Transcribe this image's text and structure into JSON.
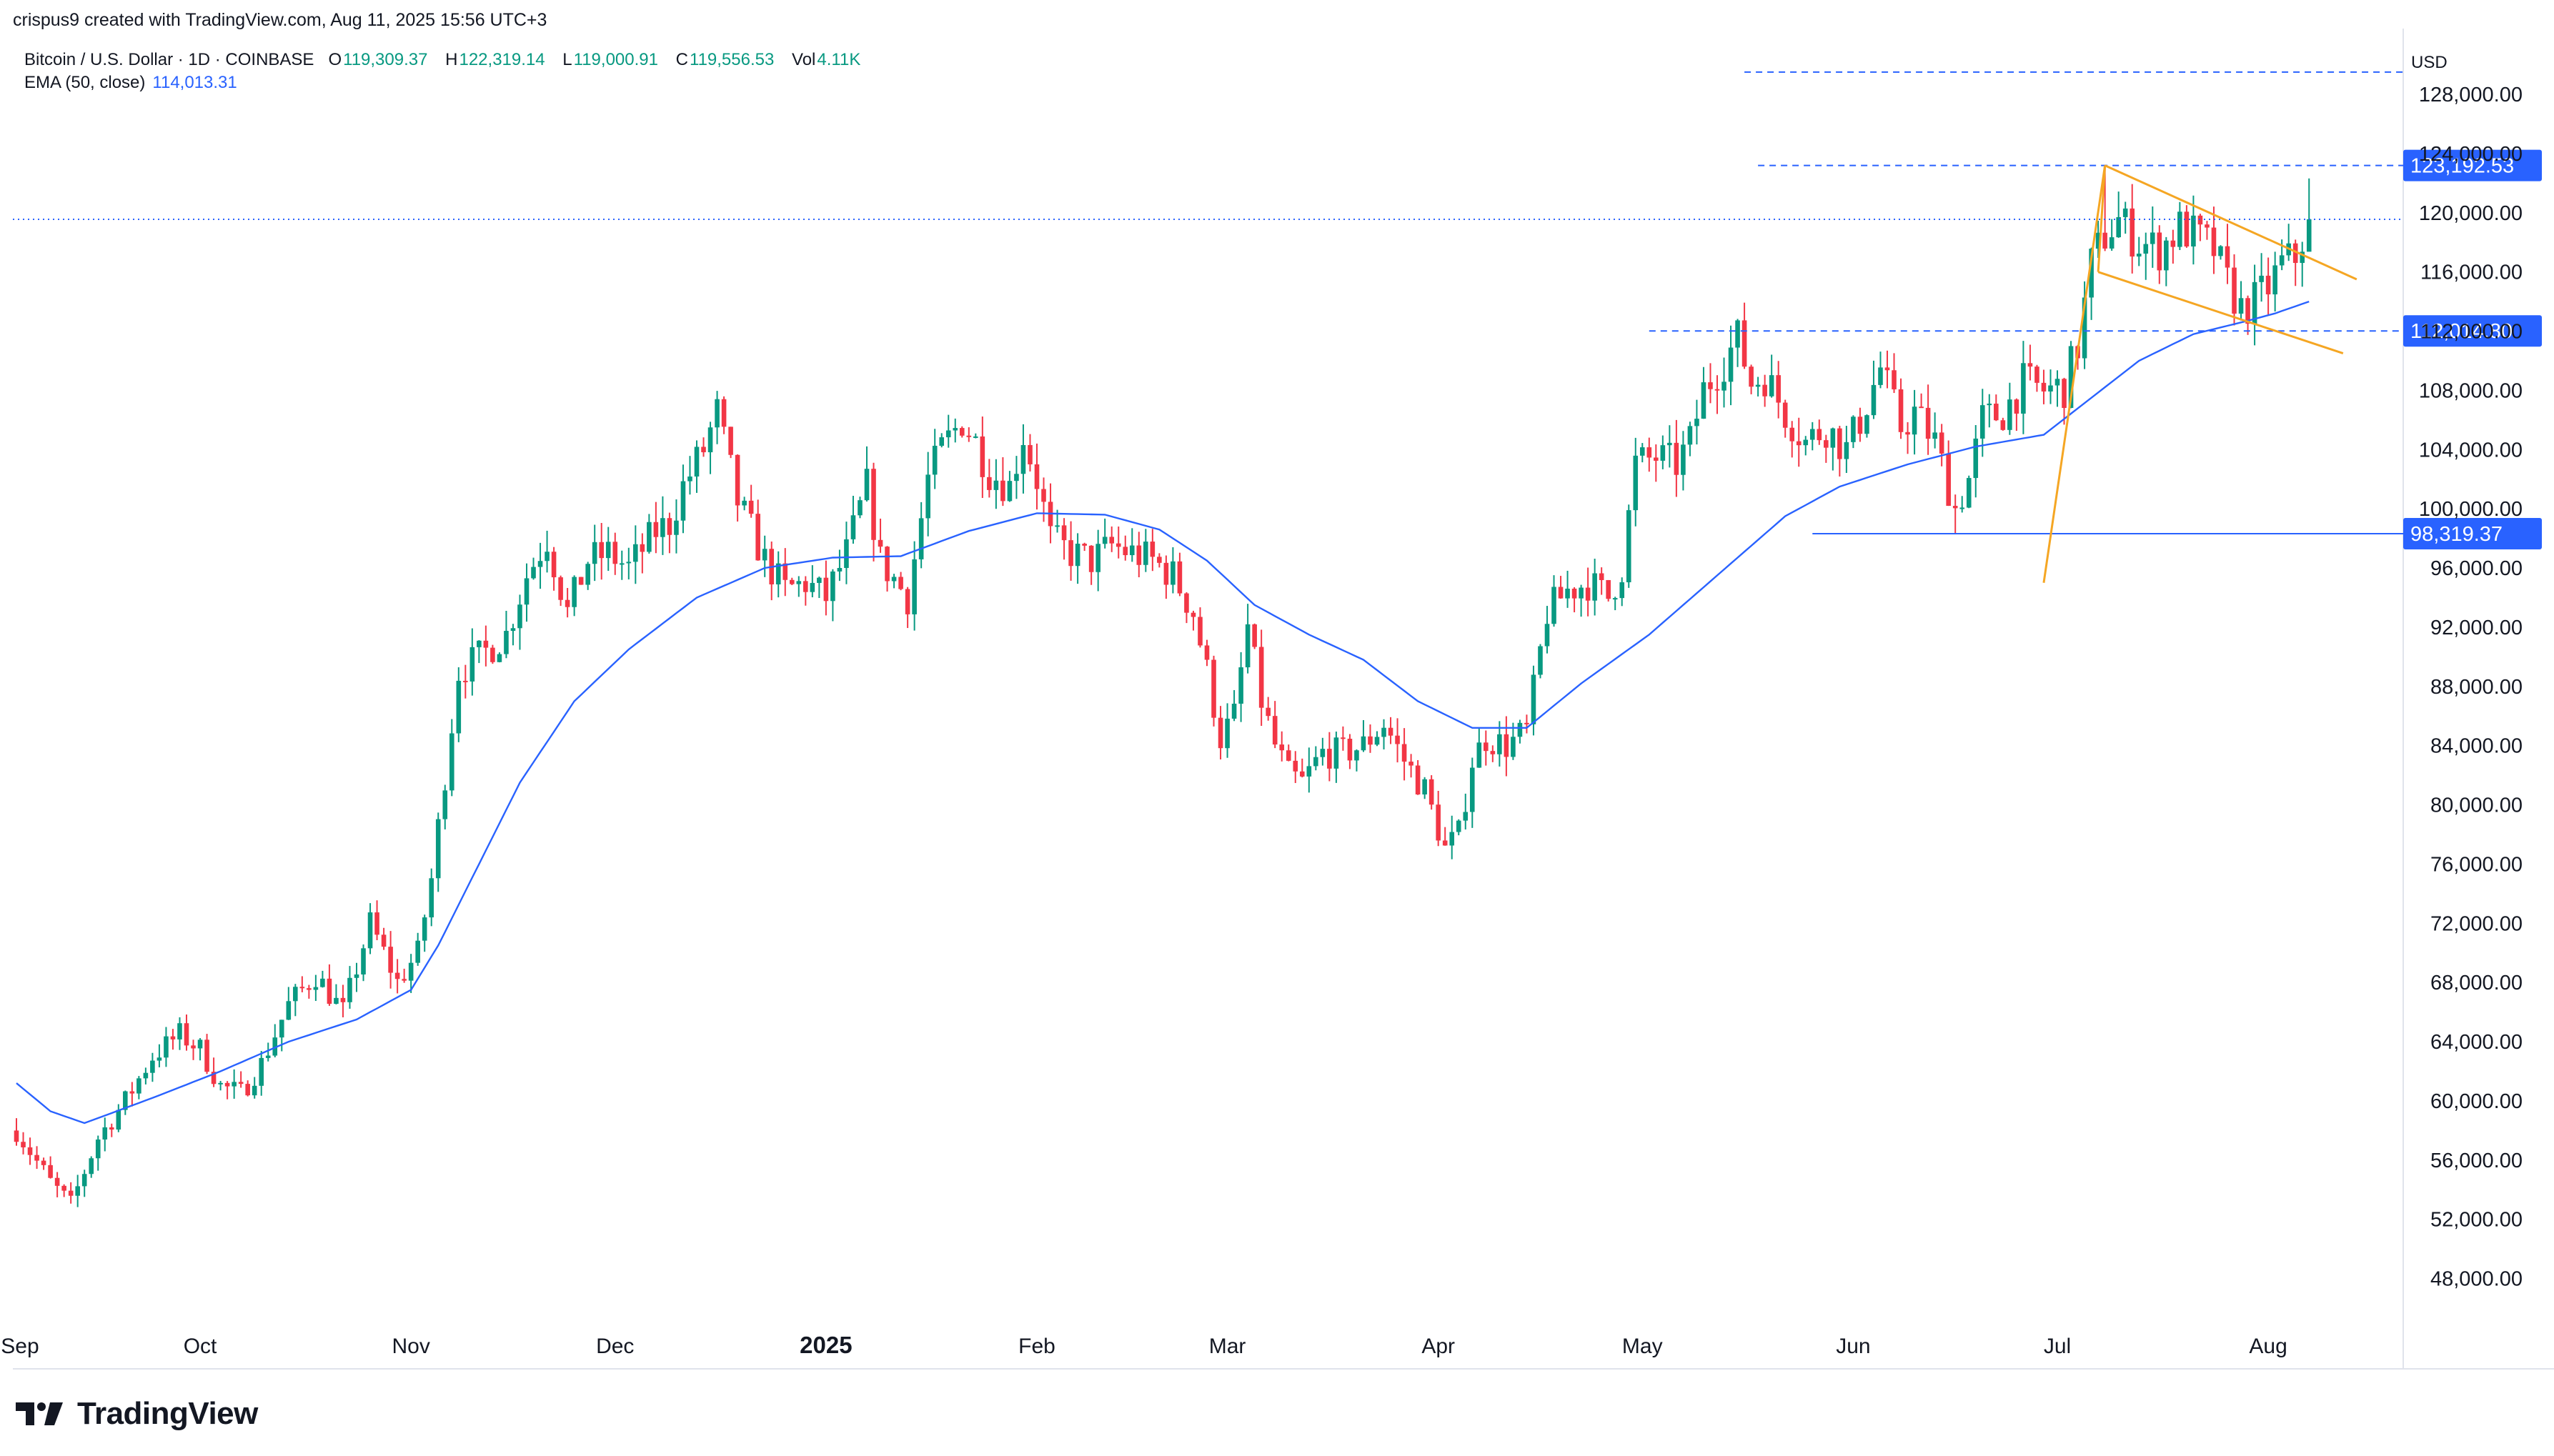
{
  "caption": "crispus9 created with TradingView.com, Aug 11, 2025 15:56 UTC+3",
  "legend": {
    "symbol": "Bitcoin / U.S. Dollar · 1D · COINBASE",
    "open_key": "O",
    "open": "119,309.37",
    "high_key": "H",
    "high": "122,319.14",
    "low_key": "L",
    "low": "119,000.91",
    "close_key": "C",
    "close": "119,556.53",
    "vol_key": "Vol",
    "vol": "4.11K",
    "ema_label": "EMA (50, close)",
    "ema_value": "114,013.31"
  },
  "brand": "TradingView",
  "chart_data": {
    "type": "candlestick",
    "title": "Bitcoin / U.S. Dollar · 1D · COINBASE",
    "currency": "USD",
    "ylim": [
      45000,
      131500
    ],
    "y_ticks": [
      48000,
      52000,
      56000,
      60000,
      64000,
      68000,
      72000,
      76000,
      80000,
      84000,
      88000,
      92000,
      96000,
      100000,
      104000,
      108000,
      112000,
      116000,
      120000,
      124000,
      128000
    ],
    "y_tick_labels": [
      "48,000.00",
      "52,000.00",
      "56,000.00",
      "60,000.00",
      "64,000.00",
      "68,000.00",
      "72,000.00",
      "76,000.00",
      "80,000.00",
      "84,000.00",
      "88,000.00",
      "92,000.00",
      "96,000.00",
      "100,000.00",
      "104,000.00",
      "108,000.00",
      "112,000.00",
      "116,000.00",
      "120,000.00",
      "124,000.00",
      "128,000.00"
    ],
    "x_labels": [
      {
        "label": "Sep",
        "day": 0
      },
      {
        "label": "Oct",
        "day": 27
      },
      {
        "label": "Nov",
        "day": 58
      },
      {
        "label": "Dec",
        "day": 88
      },
      {
        "label": "2025",
        "day": 119
      },
      {
        "label": "Feb",
        "day": 150
      },
      {
        "label": "Mar",
        "day": 178
      },
      {
        "label": "Apr",
        "day": 209
      },
      {
        "label": "May",
        "day": 239
      },
      {
        "label": "Jun",
        "day": 270
      },
      {
        "label": "Jul",
        "day": 300
      },
      {
        "label": "Aug",
        "day": 331
      }
    ],
    "price_anchors": [
      [
        0,
        58000
      ],
      [
        5,
        54500
      ],
      [
        8,
        53000
      ],
      [
        12,
        57500
      ],
      [
        16,
        60000
      ],
      [
        20,
        63000
      ],
      [
        24,
        64500
      ],
      [
        27,
        63500
      ],
      [
        30,
        61000
      ],
      [
        33,
        60500
      ],
      [
        36,
        62500
      ],
      [
        40,
        66500
      ],
      [
        44,
        68500
      ],
      [
        48,
        66000
      ],
      [
        52,
        72000
      ],
      [
        56,
        68000
      ],
      [
        59,
        70000
      ],
      [
        61,
        75000
      ],
      [
        63,
        82000
      ],
      [
        65,
        89000
      ],
      [
        68,
        90000
      ],
      [
        72,
        91500
      ],
      [
        75,
        95500
      ],
      [
        78,
        98000
      ],
      [
        81,
        93000
      ],
      [
        84,
        96500
      ],
      [
        87,
        97000
      ],
      [
        90,
        96000
      ],
      [
        94,
        98500
      ],
      [
        96,
        99000
      ],
      [
        98,
        101500
      ],
      [
        101,
        104000
      ],
      [
        103,
        106500
      ],
      [
        106,
        100500
      ],
      [
        110,
        96500
      ],
      [
        113,
        94500
      ],
      [
        116,
        95000
      ],
      [
        119,
        94000
      ],
      [
        122,
        97000
      ],
      [
        125,
        101500
      ],
      [
        127,
        96500
      ],
      [
        131,
        94000
      ],
      [
        134,
        102000
      ],
      [
        136,
        104000
      ],
      [
        139,
        106000
      ],
      [
        141,
        104500
      ],
      [
        143,
        102500
      ],
      [
        146,
        101500
      ],
      [
        148,
        105000
      ],
      [
        150,
        102000
      ],
      [
        152,
        98000
      ],
      [
        155,
        97000
      ],
      [
        158,
        96500
      ],
      [
        161,
        97500
      ],
      [
        164,
        97000
      ],
      [
        167,
        96500
      ],
      [
        170,
        95500
      ],
      [
        173,
        93000
      ],
      [
        175,
        89000
      ],
      [
        177,
        84500
      ],
      [
        179,
        86000
      ],
      [
        181,
        92000
      ],
      [
        183,
        87000
      ],
      [
        185,
        84000
      ],
      [
        187,
        82000
      ],
      [
        189,
        81500
      ],
      [
        192,
        83500
      ],
      [
        195,
        83500
      ],
      [
        198,
        84000
      ],
      [
        201,
        85500
      ],
      [
        204,
        83000
      ],
      [
        207,
        81000
      ],
      [
        210,
        77000
      ],
      [
        212,
        78000
      ],
      [
        214,
        83000
      ],
      [
        216,
        84500
      ],
      [
        219,
        84000
      ],
      [
        222,
        85000
      ],
      [
        225,
        93000
      ],
      [
        228,
        94500
      ],
      [
        231,
        95000
      ],
      [
        234,
        94000
      ],
      [
        236,
        96000
      ],
      [
        238,
        103000
      ],
      [
        241,
        103500
      ],
      [
        244,
        103000
      ],
      [
        246,
        104500
      ],
      [
        248,
        108000
      ],
      [
        251,
        110000
      ],
      [
        253,
        111500
      ],
      [
        255,
        108500
      ],
      [
        257,
        109000
      ],
      [
        260,
        106500
      ],
      [
        263,
        104500
      ],
      [
        266,
        105500
      ],
      [
        269,
        104000
      ],
      [
        271,
        106000
      ],
      [
        274,
        109500
      ],
      [
        277,
        105500
      ],
      [
        279,
        106500
      ],
      [
        282,
        104500
      ],
      [
        285,
        100000
      ],
      [
        287,
        102000
      ],
      [
        289,
        106000
      ],
      [
        292,
        106500
      ],
      [
        295,
        108500
      ],
      [
        298,
        108000
      ],
      [
        301,
        108200
      ],
      [
        303,
        111000
      ],
      [
        305,
        116500
      ],
      [
        307,
        118500
      ],
      [
        309,
        119500
      ],
      [
        312,
        118000
      ],
      [
        315,
        117500
      ],
      [
        318,
        119000
      ],
      [
        320,
        118500
      ],
      [
        323,
        117500
      ],
      [
        325,
        115200
      ],
      [
        327,
        113500
      ],
      [
        329,
        114000
      ],
      [
        331,
        115000
      ],
      [
        333,
        116500
      ],
      [
        335,
        117000
      ],
      [
        337,
        119500
      ]
    ],
    "ema_anchors": [
      [
        0,
        61200
      ],
      [
        5,
        59300
      ],
      [
        10,
        58500
      ],
      [
        20,
        60200
      ],
      [
        30,
        62000
      ],
      [
        40,
        64000
      ],
      [
        50,
        65500
      ],
      [
        58,
        67500
      ],
      [
        62,
        70500
      ],
      [
        68,
        76000
      ],
      [
        74,
        81500
      ],
      [
        82,
        87000
      ],
      [
        90,
        90500
      ],
      [
        100,
        94000
      ],
      [
        110,
        96000
      ],
      [
        120,
        96700
      ],
      [
        130,
        96800
      ],
      [
        140,
        98500
      ],
      [
        150,
        99700
      ],
      [
        160,
        99600
      ],
      [
        168,
        98600
      ],
      [
        175,
        96500
      ],
      [
        182,
        93500
      ],
      [
        190,
        91500
      ],
      [
        198,
        89800
      ],
      [
        206,
        87000
      ],
      [
        214,
        85200
      ],
      [
        222,
        85200
      ],
      [
        230,
        88200
      ],
      [
        240,
        91500
      ],
      [
        250,
        95500
      ],
      [
        260,
        99500
      ],
      [
        268,
        101500
      ],
      [
        278,
        103000
      ],
      [
        288,
        104200
      ],
      [
        298,
        105000
      ],
      [
        305,
        107500
      ],
      [
        312,
        110000
      ],
      [
        320,
        111800
      ],
      [
        328,
        112700
      ],
      [
        332,
        113200
      ],
      [
        337,
        114000
      ]
    ],
    "horizontal_levels": [
      {
        "value": 129500,
        "style": "dashed",
        "color": "#2962ff",
        "label": ""
      },
      {
        "value": 123192.53,
        "style": "dashed",
        "color": "#2962ff",
        "label": "123,192.53"
      },
      {
        "value": 112014.8,
        "style": "dashed",
        "color": "#2962ff",
        "label": "112,014.80"
      },
      {
        "value": 98319.37,
        "style": "solid",
        "color": "#2962ff",
        "label": "98,319.37"
      }
    ],
    "current_price": {
      "value": 119556.53,
      "style": "dotted",
      "color": "#2962ff"
    },
    "flag_pattern": {
      "pole": [
        [
          298,
          95000
        ],
        [
          307,
          123192.53
        ]
      ],
      "pole_base": [
        [
          307,
          123192.53
        ],
        [
          306,
          116000
        ]
      ],
      "upper_line": [
        [
          307,
          123192.53
        ],
        [
          344,
          115500
        ]
      ],
      "lower_line": [
        [
          306,
          116000
        ],
        [
          342,
          110500
        ]
      ]
    },
    "colors": {
      "up": "#089981",
      "down": "#f23645",
      "ema": "#2962ff",
      "pattern": "#f5a623",
      "level": "#2962ff"
    }
  }
}
